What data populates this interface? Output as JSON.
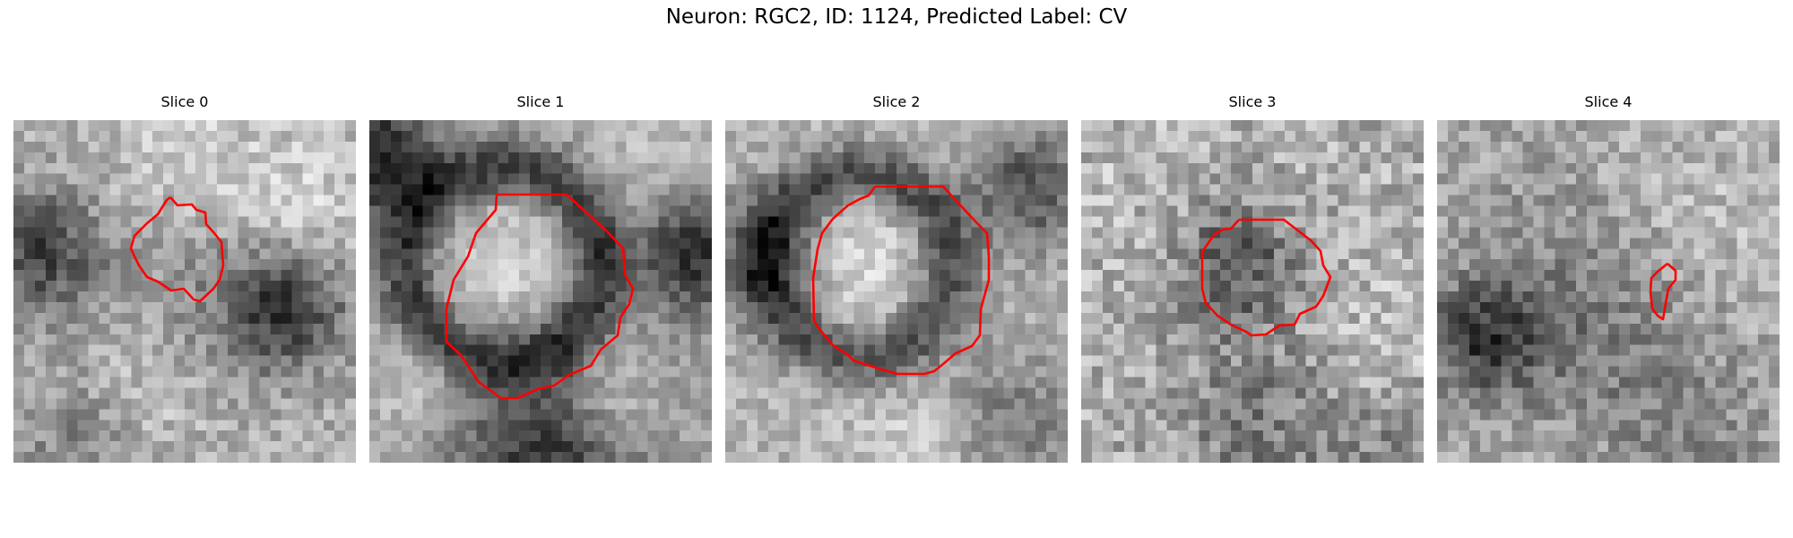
{
  "figure": {
    "title": "Neuron: RGC2, ID: 1124, Predicted Label: CV",
    "panels": [
      {
        "title": "Slice 0"
      },
      {
        "title": "Slice 1"
      },
      {
        "title": "Slice 2"
      },
      {
        "title": "Slice 3"
      },
      {
        "title": "Slice 4"
      }
    ],
    "image_style": "grayscale microscopy patches, 32x32 pixels each, with a red segmentation contour",
    "contour_color": "#ff0000"
  }
}
